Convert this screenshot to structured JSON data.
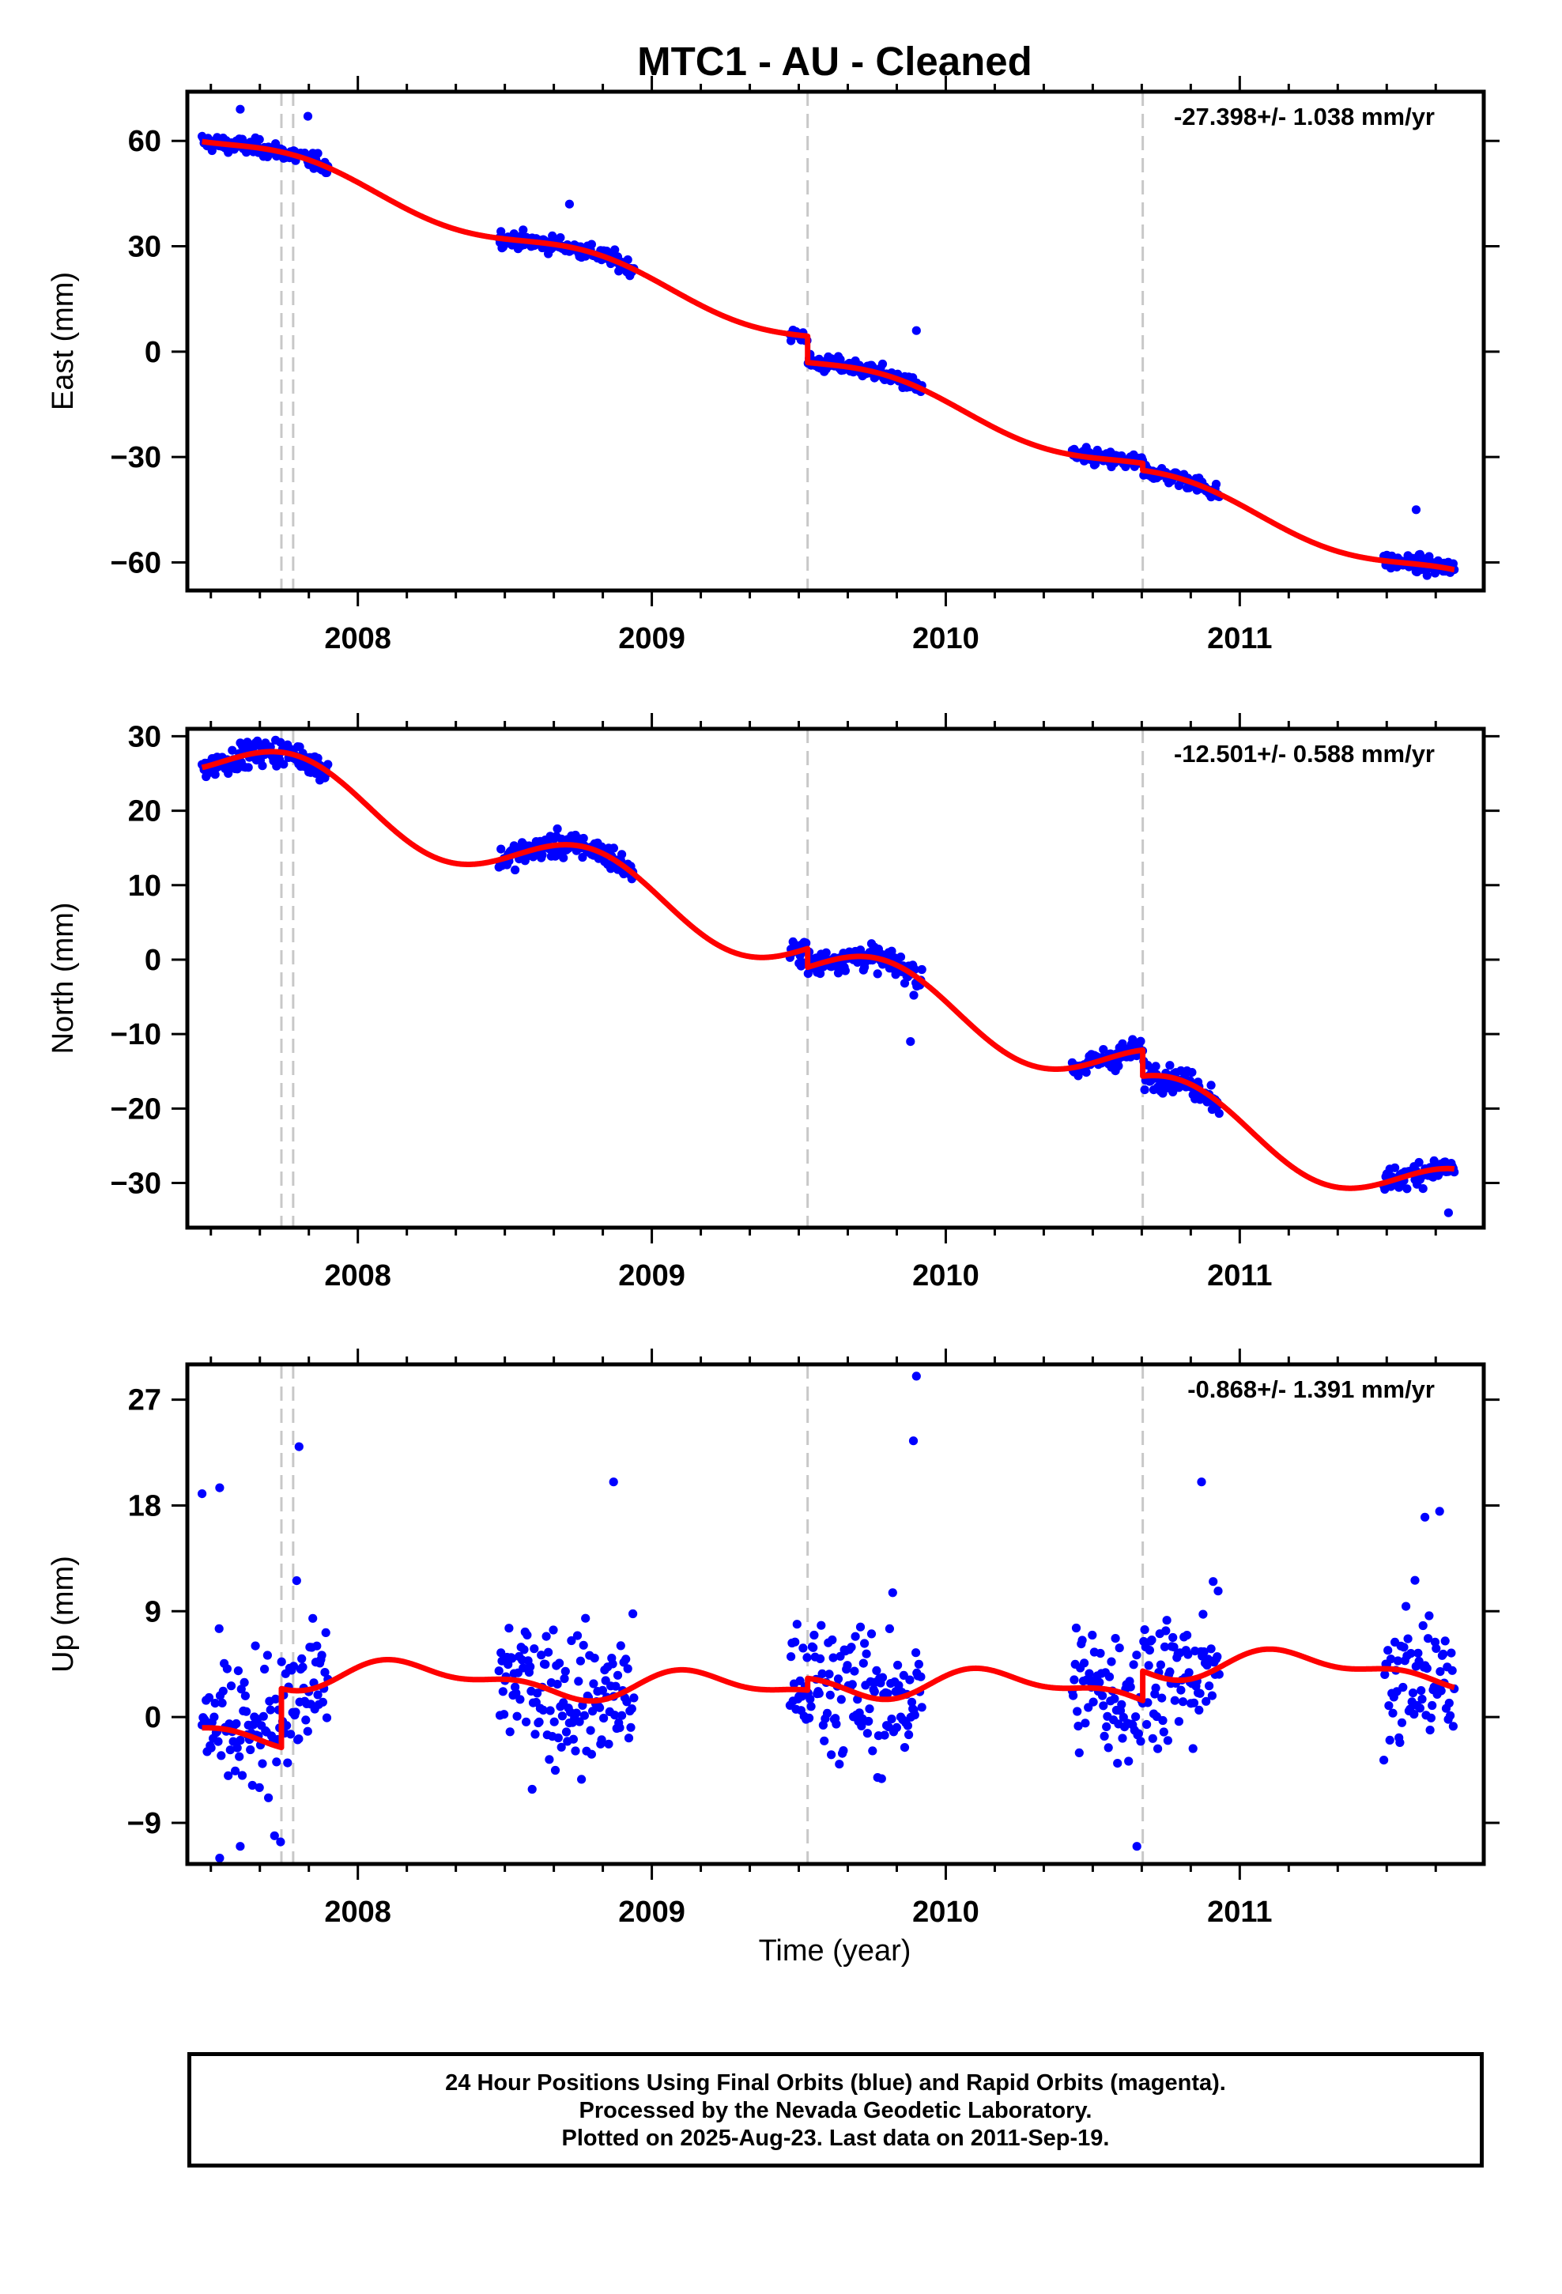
{
  "title": "MTC1  - AU - Cleaned",
  "xlabel": "Time (year)",
  "caption": [
    "24 Hour Positions Using Final Orbits (blue) and Rapid Orbits (magenta).",
    "Processed by the Nevada Geodetic Laboratory.",
    "Plotted on 2025-Aug-23. Last data on 2011-Sep-19."
  ],
  "colors": {
    "data": "#0000ff",
    "model": "#ff0000",
    "event_lines": "#c8c8c8"
  },
  "chart_data": [
    {
      "type": "scatter",
      "panel": "east",
      "ylabel": "East (mm)",
      "rate": "-27.398+/- 1.038 mm/yr",
      "xlim": [
        2007.42,
        2011.83
      ],
      "ylim": [
        -68,
        74
      ],
      "yticks": [
        60,
        30,
        0,
        -30,
        -60
      ],
      "xticks": [
        2008,
        2009,
        2010,
        2011
      ],
      "events": [
        2007.74,
        2007.78,
        2009.53,
        2010.67
      ],
      "segments": [
        [
          2007.47,
          2007.9
        ],
        [
          2008.48,
          2008.94
        ],
        [
          2009.47,
          2009.92
        ],
        [
          2010.43,
          2010.93
        ],
        [
          2011.49,
          2011.73
        ]
      ],
      "rate_mm_yr": -27.398,
      "offsets": [
        [
          2009.53,
          -7.5
        ],
        [
          2010.67,
          -2.0
        ]
      ],
      "start_value": 61.5,
      "seasonal": {
        "sin": -2.8,
        "cos": 1.2,
        "sin2": 0,
        "cos2": 0
      },
      "scatter_sd": 1.6,
      "outliers": [
        [
          2007.6,
          69
        ],
        [
          2007.83,
          67
        ],
        [
          2008.72,
          42
        ],
        [
          2009.9,
          6
        ],
        [
          2011.6,
          -45
        ]
      ]
    },
    {
      "type": "scatter",
      "panel": "north",
      "ylabel": "North (mm)",
      "rate": "-12.501+/- 0.588 mm/yr",
      "xlim": [
        2007.42,
        2011.83
      ],
      "ylim": [
        -36,
        31
      ],
      "yticks": [
        30,
        20,
        10,
        0,
        -10,
        -20,
        -30
      ],
      "xticks": [
        2008,
        2009,
        2010,
        2011
      ],
      "events": [
        2007.74,
        2007.78,
        2009.53,
        2010.67
      ],
      "segments": [
        [
          2007.47,
          2007.9
        ],
        [
          2008.48,
          2008.94
        ],
        [
          2009.47,
          2009.92
        ],
        [
          2010.43,
          2010.93
        ],
        [
          2011.49,
          2011.73
        ]
      ],
      "rate_mm_yr": -12.501,
      "offsets": [
        [
          2009.53,
          -2.5
        ],
        [
          2010.67,
          -3.5
        ]
      ],
      "start_value": 27.5,
      "seasonal": {
        "sin": -3.8,
        "cos": 1.0,
        "sin2": 0,
        "cos2": 0
      },
      "scatter_sd": 1.2,
      "outliers": [
        [
          2009.88,
          -11
        ],
        [
          2011.71,
          -34
        ]
      ]
    },
    {
      "type": "scatter",
      "panel": "up",
      "ylabel": "Up (mm)",
      "rate": "-0.868+/- 1.391 mm/yr",
      "xlim": [
        2007.42,
        2011.83
      ],
      "ylim": [
        -12.5,
        30
      ],
      "yticks": [
        27,
        18,
        9,
        0,
        -9
      ],
      "xticks": [
        2008,
        2009,
        2010,
        2011
      ],
      "events": [
        2007.74,
        2007.78,
        2009.53,
        2010.67
      ],
      "segments": [
        [
          2007.47,
          2007.9
        ],
        [
          2008.48,
          2008.94
        ],
        [
          2009.47,
          2009.92
        ],
        [
          2010.43,
          2010.93
        ],
        [
          2011.49,
          2011.73
        ]
      ],
      "rate_mm_yr": -0.868,
      "offsets": [
        [
          2007.74,
          5.0
        ],
        [
          2009.53,
          1.0
        ],
        [
          2010.67,
          2.5
        ]
      ],
      "start_value": -1.0,
      "seasonal": {
        "sin": 1.0,
        "cos": 0.3,
        "sin2": 0.5,
        "cos2": 0.4
      },
      "scatter_sd": 4.2,
      "outliers": [
        [
          2009.9,
          29
        ],
        [
          2009.89,
          23.5
        ],
        [
          2007.8,
          23
        ],
        [
          2007.53,
          19.5
        ],
        [
          2008.87,
          20
        ],
        [
          2010.87,
          20
        ],
        [
          2007.47,
          19
        ],
        [
          2007.53,
          -12
        ],
        [
          2007.6,
          -11
        ],
        [
          2010.65,
          -11
        ],
        [
          2011.68,
          17.5
        ],
        [
          2011.63,
          17
        ]
      ]
    }
  ]
}
